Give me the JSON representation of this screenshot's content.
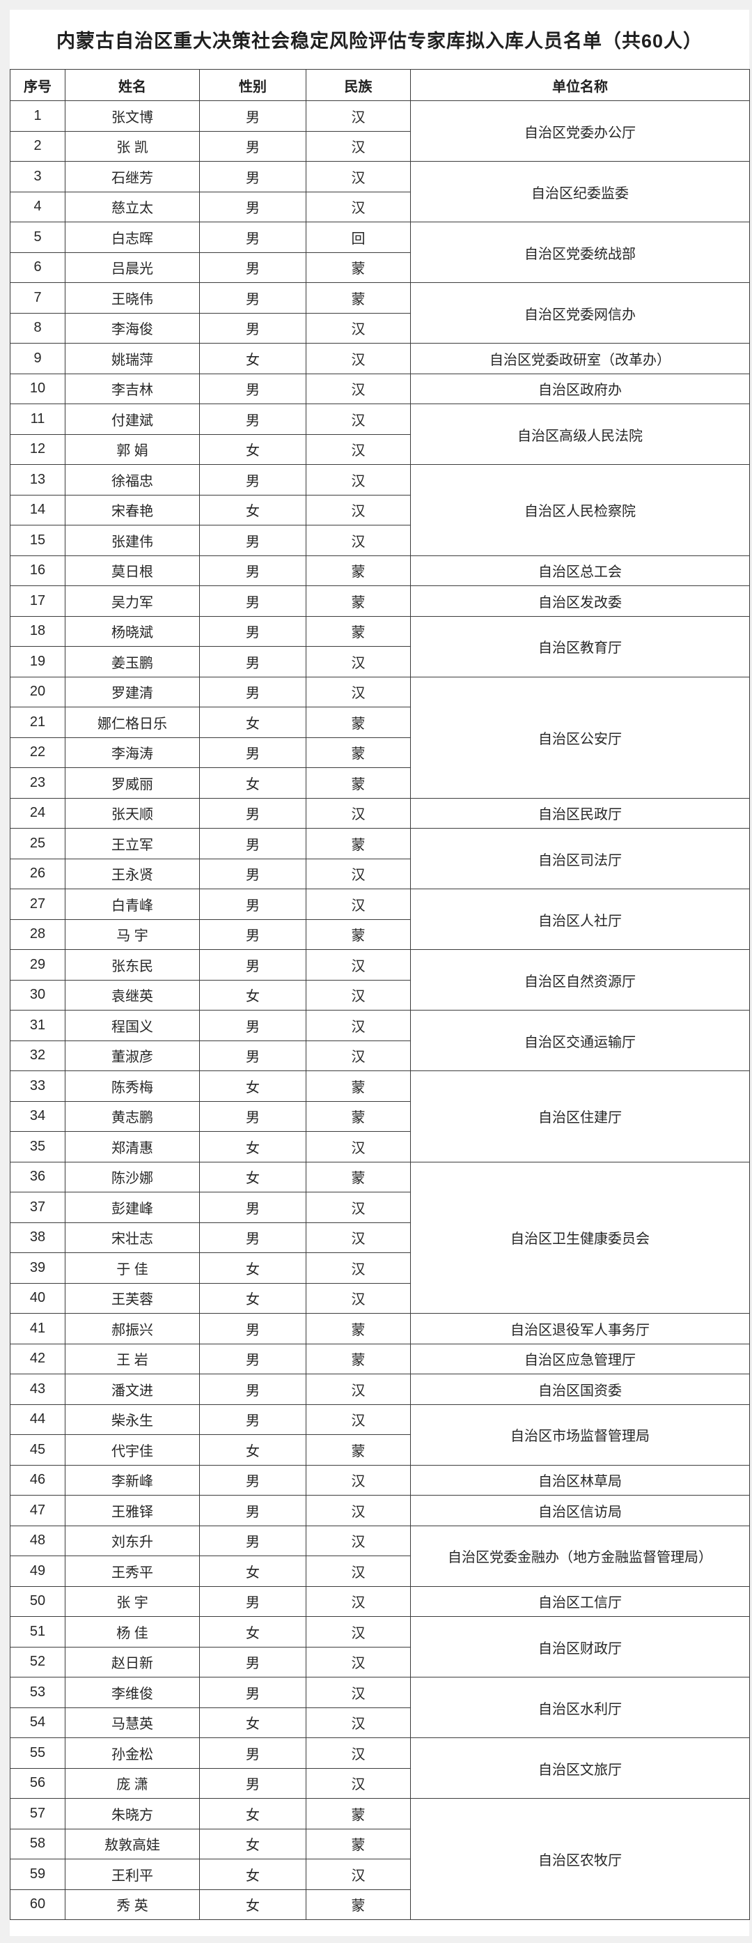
{
  "title": "内蒙古自治区重大决策社会稳定风险评估专家库拟入库人员名单（共60人）",
  "table": {
    "headers": [
      "序号",
      "姓名",
      "性别",
      "民族",
      "单位名称"
    ],
    "rows": [
      {
        "n": "1",
        "name": "张文博",
        "sex": "男",
        "eth": "汉",
        "unit": "自治区党委办公厅",
        "span": 2
      },
      {
        "n": "2",
        "name": "张 凯",
        "sex": "男",
        "eth": "汉"
      },
      {
        "n": "3",
        "name": "石继芳",
        "sex": "男",
        "eth": "汉",
        "unit": "自治区纪委监委",
        "span": 2
      },
      {
        "n": "4",
        "name": "慈立太",
        "sex": "男",
        "eth": "汉"
      },
      {
        "n": "5",
        "name": "白志晖",
        "sex": "男",
        "eth": "回",
        "unit": "自治区党委统战部",
        "span": 2
      },
      {
        "n": "6",
        "name": "吕晨光",
        "sex": "男",
        "eth": "蒙"
      },
      {
        "n": "7",
        "name": "王晓伟",
        "sex": "男",
        "eth": "蒙",
        "unit": "自治区党委网信办",
        "span": 2
      },
      {
        "n": "8",
        "name": "李海俊",
        "sex": "男",
        "eth": "汉"
      },
      {
        "n": "9",
        "name": "姚瑞萍",
        "sex": "女",
        "eth": "汉",
        "unit": "自治区党委政研室（改革办）",
        "span": 1
      },
      {
        "n": "10",
        "name": "李吉林",
        "sex": "男",
        "eth": "汉",
        "unit": "自治区政府办",
        "span": 1
      },
      {
        "n": "11",
        "name": "付建斌",
        "sex": "男",
        "eth": "汉",
        "unit": "自治区高级人民法院",
        "span": 2
      },
      {
        "n": "12",
        "name": "郭 娟",
        "sex": "女",
        "eth": "汉"
      },
      {
        "n": "13",
        "name": "徐福忠",
        "sex": "男",
        "eth": "汉",
        "unit": "自治区人民检察院",
        "span": 3
      },
      {
        "n": "14",
        "name": "宋春艳",
        "sex": "女",
        "eth": "汉"
      },
      {
        "n": "15",
        "name": "张建伟",
        "sex": "男",
        "eth": "汉"
      },
      {
        "n": "16",
        "name": "莫日根",
        "sex": "男",
        "eth": "蒙",
        "unit": "自治区总工会",
        "span": 1
      },
      {
        "n": "17",
        "name": "吴力军",
        "sex": "男",
        "eth": "蒙",
        "unit": "自治区发改委",
        "span": 1
      },
      {
        "n": "18",
        "name": "杨晓斌",
        "sex": "男",
        "eth": "蒙",
        "unit": "自治区教育厅",
        "span": 2
      },
      {
        "n": "19",
        "name": "姜玉鹏",
        "sex": "男",
        "eth": "汉"
      },
      {
        "n": "20",
        "name": "罗建清",
        "sex": "男",
        "eth": "汉",
        "unit": "自治区公安厅",
        "span": 4
      },
      {
        "n": "21",
        "name": "娜仁格日乐",
        "sex": "女",
        "eth": "蒙"
      },
      {
        "n": "22",
        "name": "李海涛",
        "sex": "男",
        "eth": "蒙"
      },
      {
        "n": "23",
        "name": "罗威丽",
        "sex": "女",
        "eth": "蒙"
      },
      {
        "n": "24",
        "name": "张天顺",
        "sex": "男",
        "eth": "汉",
        "unit": "自治区民政厅",
        "span": 1
      },
      {
        "n": "25",
        "name": "王立军",
        "sex": "男",
        "eth": "蒙",
        "unit": "自治区司法厅",
        "span": 2
      },
      {
        "n": "26",
        "name": "王永贤",
        "sex": "男",
        "eth": "汉"
      },
      {
        "n": "27",
        "name": "白青峰",
        "sex": "男",
        "eth": "汉",
        "unit": "自治区人社厅",
        "span": 2
      },
      {
        "n": "28",
        "name": "马 宇",
        "sex": "男",
        "eth": "蒙"
      },
      {
        "n": "29",
        "name": "张东民",
        "sex": "男",
        "eth": "汉",
        "unit": "自治区自然资源厅",
        "span": 2
      },
      {
        "n": "30",
        "name": "袁继英",
        "sex": "女",
        "eth": "汉"
      },
      {
        "n": "31",
        "name": "程国义",
        "sex": "男",
        "eth": "汉",
        "unit": "自治区交通运输厅",
        "span": 2
      },
      {
        "n": "32",
        "name": "董淑彦",
        "sex": "男",
        "eth": "汉"
      },
      {
        "n": "33",
        "name": "陈秀梅",
        "sex": "女",
        "eth": "蒙",
        "unit": "自治区住建厅",
        "span": 3
      },
      {
        "n": "34",
        "name": "黄志鹏",
        "sex": "男",
        "eth": "蒙"
      },
      {
        "n": "35",
        "name": "郑清惠",
        "sex": "女",
        "eth": "汉"
      },
      {
        "n": "36",
        "name": "陈沙娜",
        "sex": "女",
        "eth": "蒙",
        "unit": "自治区卫生健康委员会",
        "span": 5
      },
      {
        "n": "37",
        "name": "彭建峰",
        "sex": "男",
        "eth": "汉"
      },
      {
        "n": "38",
        "name": "宋壮志",
        "sex": "男",
        "eth": "汉"
      },
      {
        "n": "39",
        "name": "于 佳",
        "sex": "女",
        "eth": "汉"
      },
      {
        "n": "40",
        "name": "王芙蓉",
        "sex": "女",
        "eth": "汉"
      },
      {
        "n": "41",
        "name": "郝振兴",
        "sex": "男",
        "eth": "蒙",
        "unit": "自治区退役军人事务厅",
        "span": 1
      },
      {
        "n": "42",
        "name": "王 岩",
        "sex": "男",
        "eth": "蒙",
        "unit": "自治区应急管理厅",
        "span": 1
      },
      {
        "n": "43",
        "name": "潘文进",
        "sex": "男",
        "eth": "汉",
        "unit": "自治区国资委",
        "span": 1
      },
      {
        "n": "44",
        "name": "柴永生",
        "sex": "男",
        "eth": "汉",
        "unit": "自治区市场监督管理局",
        "span": 2
      },
      {
        "n": "45",
        "name": "代宇佳",
        "sex": "女",
        "eth": "蒙"
      },
      {
        "n": "46",
        "name": "李新峰",
        "sex": "男",
        "eth": "汉",
        "unit": "自治区林草局",
        "span": 1
      },
      {
        "n": "47",
        "name": "王雅铎",
        "sex": "男",
        "eth": "汉",
        "unit": "自治区信访局",
        "span": 1
      },
      {
        "n": "48",
        "name": "刘东升",
        "sex": "男",
        "eth": "汉",
        "unit": "自治区党委金融办（地方金融监督管理局）",
        "span": 2
      },
      {
        "n": "49",
        "name": "王秀平",
        "sex": "女",
        "eth": "汉"
      },
      {
        "n": "50",
        "name": "张 宇",
        "sex": "男",
        "eth": "汉",
        "unit": "自治区工信厅",
        "span": 1
      },
      {
        "n": "51",
        "name": "杨 佳",
        "sex": "女",
        "eth": "汉",
        "unit": "自治区财政厅",
        "span": 2
      },
      {
        "n": "52",
        "name": "赵日新",
        "sex": "男",
        "eth": "汉"
      },
      {
        "n": "53",
        "name": "李维俊",
        "sex": "男",
        "eth": "汉",
        "unit": "自治区水利厅",
        "span": 2
      },
      {
        "n": "54",
        "name": "马慧英",
        "sex": "女",
        "eth": "汉"
      },
      {
        "n": "55",
        "name": "孙金松",
        "sex": "男",
        "eth": "汉",
        "unit": "自治区文旅厅",
        "span": 2
      },
      {
        "n": "56",
        "name": "庞 潇",
        "sex": "男",
        "eth": "汉"
      },
      {
        "n": "57",
        "name": "朱晓方",
        "sex": "女",
        "eth": "蒙",
        "unit": "自治区农牧厅",
        "span": 4
      },
      {
        "n": "58",
        "name": "敖敦高娃",
        "sex": "女",
        "eth": "蒙"
      },
      {
        "n": "59",
        "name": "王利平",
        "sex": "女",
        "eth": "汉"
      },
      {
        "n": "60",
        "name": "秀 英",
        "sex": "女",
        "eth": "蒙"
      }
    ]
  }
}
